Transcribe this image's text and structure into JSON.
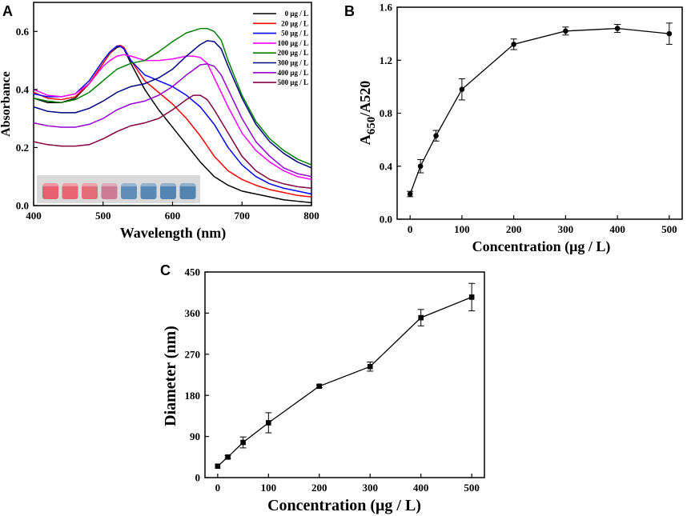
{
  "figure": {
    "panel_labels": [
      "A",
      "B",
      "C"
    ]
  },
  "colors": {
    "axis": "#000000",
    "inset_bg": "#d9d9d9"
  },
  "chart_data": [
    {
      "panel": "A",
      "type": "line",
      "xlabel": "Wavelength (nm)",
      "ylabel": "Absorbance",
      "xlim": [
        400,
        800
      ],
      "ylim": [
        0.0,
        0.7
      ],
      "xticks": [
        400,
        500,
        600,
        700,
        800
      ],
      "yticks": [
        0.0,
        0.2,
        0.4,
        0.6
      ],
      "ytick_labels": [
        "0.0",
        "0.2",
        "0.4",
        "0.6"
      ],
      "legend_position": "top-right",
      "inset": {
        "description": "vials",
        "colors": [
          "#e84a5c",
          "#e7525f",
          "#e55a66",
          "#c96a86",
          "#4a80b3",
          "#3f7aae",
          "#3b76aa",
          "#3a74a8"
        ]
      },
      "series": [
        {
          "name": "0 μg / L",
          "color": "#000000",
          "x": [
            400,
            420,
            440,
            460,
            480,
            500,
            510,
            520,
            525,
            530,
            540,
            560,
            580,
            600,
            620,
            640,
            660,
            680,
            700,
            720,
            740,
            760,
            780,
            800
          ],
          "y": [
            0.37,
            0.355,
            0.355,
            0.37,
            0.42,
            0.49,
            0.525,
            0.545,
            0.548,
            0.54,
            0.49,
            0.4,
            0.33,
            0.27,
            0.21,
            0.15,
            0.1,
            0.07,
            0.05,
            0.04,
            0.03,
            0.02,
            0.015,
            0.01
          ]
        },
        {
          "name": "20 μg / L",
          "color": "#ff0000",
          "x": [
            400,
            420,
            440,
            460,
            480,
            500,
            510,
            520,
            525,
            530,
            540,
            560,
            580,
            600,
            620,
            640,
            660,
            680,
            700,
            720,
            740,
            760,
            780,
            800
          ],
          "y": [
            0.39,
            0.37,
            0.365,
            0.375,
            0.42,
            0.49,
            0.525,
            0.55,
            0.552,
            0.545,
            0.5,
            0.43,
            0.39,
            0.35,
            0.3,
            0.24,
            0.17,
            0.12,
            0.09,
            0.07,
            0.055,
            0.045,
            0.035,
            0.03
          ]
        },
        {
          "name": "50 μg / L",
          "color": "#0000ff",
          "x": [
            400,
            420,
            440,
            460,
            480,
            500,
            510,
            520,
            525,
            530,
            540,
            560,
            580,
            600,
            620,
            640,
            660,
            680,
            700,
            720,
            740,
            760,
            780,
            800
          ],
          "y": [
            0.385,
            0.375,
            0.375,
            0.385,
            0.43,
            0.5,
            0.53,
            0.55,
            0.548,
            0.54,
            0.5,
            0.45,
            0.43,
            0.41,
            0.38,
            0.34,
            0.28,
            0.2,
            0.14,
            0.1,
            0.075,
            0.06,
            0.05,
            0.04
          ]
        },
        {
          "name": "100 μg / L",
          "color": "#ff00ff",
          "x": [
            400,
            420,
            440,
            460,
            480,
            500,
            510,
            520,
            530,
            540,
            560,
            580,
            600,
            620,
            630,
            640,
            650,
            660,
            680,
            700,
            720,
            740,
            760,
            780,
            800
          ],
          "y": [
            0.4,
            0.38,
            0.375,
            0.385,
            0.42,
            0.48,
            0.5,
            0.515,
            0.52,
            0.515,
            0.5,
            0.5,
            0.505,
            0.515,
            0.515,
            0.51,
            0.49,
            0.44,
            0.34,
            0.25,
            0.19,
            0.15,
            0.12,
            0.1,
            0.09
          ]
        },
        {
          "name": "200 μg / L",
          "color": "#008000",
          "x": [
            400,
            420,
            440,
            460,
            480,
            500,
            520,
            540,
            560,
            580,
            600,
            620,
            640,
            650,
            660,
            670,
            680,
            700,
            720,
            740,
            760,
            780,
            800
          ],
          "y": [
            0.37,
            0.36,
            0.355,
            0.365,
            0.39,
            0.43,
            0.47,
            0.49,
            0.5,
            0.53,
            0.565,
            0.595,
            0.61,
            0.61,
            0.6,
            0.57,
            0.5,
            0.38,
            0.29,
            0.23,
            0.19,
            0.16,
            0.14
          ]
        },
        {
          "name": "300 μg / L",
          "color": "#000080",
          "x": [
            400,
            420,
            440,
            460,
            480,
            500,
            520,
            540,
            560,
            580,
            600,
            620,
            640,
            650,
            660,
            670,
            680,
            700,
            720,
            740,
            760,
            780,
            800
          ],
          "y": [
            0.34,
            0.325,
            0.32,
            0.32,
            0.335,
            0.36,
            0.39,
            0.41,
            0.42,
            0.44,
            0.47,
            0.515,
            0.555,
            0.568,
            0.565,
            0.54,
            0.48,
            0.37,
            0.28,
            0.22,
            0.18,
            0.15,
            0.13
          ]
        },
        {
          "name": "400 μg / L",
          "color": "#9400d3",
          "x": [
            400,
            420,
            440,
            460,
            480,
            500,
            520,
            540,
            560,
            580,
            600,
            620,
            640,
            650,
            660,
            670,
            680,
            700,
            720,
            740,
            760,
            780,
            800
          ],
          "y": [
            0.285,
            0.275,
            0.27,
            0.27,
            0.28,
            0.3,
            0.33,
            0.35,
            0.36,
            0.38,
            0.41,
            0.45,
            0.485,
            0.488,
            0.48,
            0.45,
            0.4,
            0.3,
            0.22,
            0.17,
            0.13,
            0.11,
            0.1
          ]
        },
        {
          "name": "500 μg / L",
          "color": "#800040",
          "x": [
            400,
            420,
            440,
            460,
            480,
            500,
            520,
            540,
            560,
            580,
            600,
            620,
            630,
            640,
            650,
            660,
            680,
            700,
            720,
            740,
            760,
            780,
            800
          ],
          "y": [
            0.22,
            0.21,
            0.205,
            0.205,
            0.21,
            0.23,
            0.255,
            0.275,
            0.285,
            0.3,
            0.33,
            0.365,
            0.38,
            0.38,
            0.365,
            0.33,
            0.25,
            0.17,
            0.12,
            0.09,
            0.075,
            0.065,
            0.06
          ]
        }
      ]
    },
    {
      "panel": "B",
      "type": "line",
      "xlabel": "Concentration (μg / L)",
      "ylabel": "A650/A520",
      "ylabel_parts": [
        "A",
        "650",
        "/A520"
      ],
      "xlim": [
        -25,
        525
      ],
      "ylim": [
        0.0,
        1.6
      ],
      "xticks": [
        0,
        100,
        200,
        300,
        400,
        500
      ],
      "yticks": [
        0.0,
        0.4,
        0.8,
        1.2,
        1.6
      ],
      "ytick_labels": [
        "0.0",
        "0.4",
        "0.8",
        "1.2",
        "1.6"
      ],
      "marker": "circle",
      "x": [
        0,
        20,
        50,
        100,
        200,
        300,
        400,
        500
      ],
      "y": [
        0.19,
        0.4,
        0.63,
        0.98,
        1.32,
        1.42,
        1.44,
        1.4
      ],
      "error": [
        0.02,
        0.05,
        0.04,
        0.08,
        0.04,
        0.03,
        0.03,
        0.08
      ]
    },
    {
      "panel": "C",
      "type": "line",
      "xlabel": "Concentration (μg / L)",
      "ylabel": "Diameter (nm)",
      "xlim": [
        -25,
        525
      ],
      "ylim": [
        0,
        450
      ],
      "xticks": [
        0,
        100,
        200,
        300,
        400,
        500
      ],
      "yticks": [
        0,
        90,
        180,
        270,
        360,
        450
      ],
      "ytick_labels": [
        "0",
        "90",
        "180",
        "270",
        "360",
        "450"
      ],
      "marker": "square",
      "x": [
        0,
        20,
        50,
        100,
        200,
        300,
        400,
        500
      ],
      "y": [
        25,
        45,
        77,
        120,
        200,
        243,
        350,
        395
      ],
      "error": [
        0,
        3,
        12,
        22,
        3,
        10,
        18,
        30
      ]
    }
  ]
}
